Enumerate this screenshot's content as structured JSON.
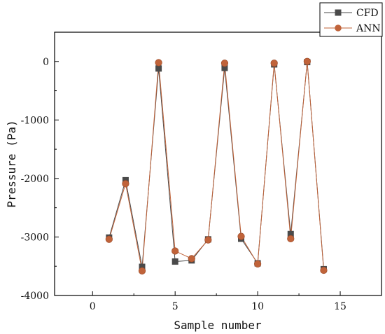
{
  "chart_data": {
    "type": "line",
    "xlabel": "Sample number",
    "ylabel": "Pressure (Pa)",
    "xlim": [
      -2.3,
      17.5
    ],
    "ylim": [
      -4000,
      500
    ],
    "xticks": [
      0,
      5,
      10,
      15
    ],
    "yticks": [
      0,
      -1000,
      -2000,
      -3000,
      -4000
    ],
    "grid": false,
    "legend_position": "top-right",
    "x": [
      1,
      2,
      3,
      4,
      5,
      6,
      7,
      8,
      9,
      10,
      11,
      12,
      13,
      14
    ],
    "series": [
      {
        "name": "CFD",
        "marker": "square",
        "color": "#4a4a4a",
        "values": [
          -3010,
          -2030,
          -3510,
          -120,
          -3420,
          -3400,
          -3040,
          -110,
          -3030,
          -3450,
          -50,
          -2950,
          -10,
          -3550
        ]
      },
      {
        "name": "ANN",
        "marker": "circle",
        "color": "#c0633a",
        "values": [
          -3040,
          -2090,
          -3580,
          -20,
          -3240,
          -3370,
          -3050,
          -30,
          -2990,
          -3460,
          -30,
          -3030,
          0,
          -3570
        ]
      }
    ]
  }
}
